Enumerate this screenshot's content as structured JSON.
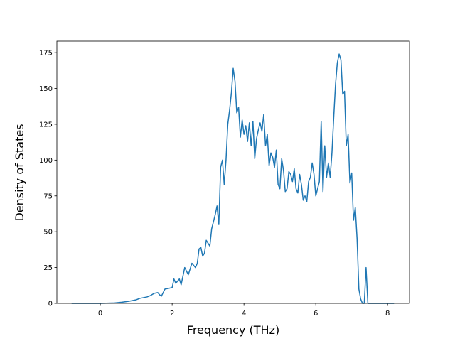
{
  "chart_data": {
    "type": "line",
    "xlabel": "Frequency (THz)",
    "ylabel": "Density of States",
    "x": [
      -0.8,
      -0.4,
      0,
      0.4,
      0.6,
      0.8,
      1.0,
      1.1,
      1.2,
      1.3,
      1.4,
      1.5,
      1.6,
      1.65,
      1.7,
      1.8,
      1.9,
      2.0,
      2.05,
      2.1,
      2.2,
      2.25,
      2.3,
      2.35,
      2.45,
      2.55,
      2.65,
      2.7,
      2.75,
      2.8,
      2.85,
      2.9,
      2.95,
      3.0,
      3.05,
      3.1,
      3.15,
      3.2,
      3.25,
      3.3,
      3.35,
      3.4,
      3.45,
      3.5,
      3.55,
      3.6,
      3.65,
      3.7,
      3.75,
      3.8,
      3.85,
      3.9,
      3.95,
      4.0,
      4.05,
      4.1,
      4.15,
      4.2,
      4.25,
      4.3,
      4.35,
      4.4,
      4.45,
      4.5,
      4.55,
      4.6,
      4.65,
      4.7,
      4.75,
      4.8,
      4.85,
      4.9,
      4.95,
      5.0,
      5.05,
      5.1,
      5.15,
      5.2,
      5.25,
      5.3,
      5.35,
      5.4,
      5.45,
      5.5,
      5.55,
      5.6,
      5.65,
      5.7,
      5.75,
      5.8,
      5.85,
      5.9,
      5.95,
      6.0,
      6.05,
      6.1,
      6.15,
      6.2,
      6.25,
      6.3,
      6.35,
      6.4,
      6.45,
      6.5,
      6.55,
      6.6,
      6.65,
      6.7,
      6.75,
      6.8,
      6.85,
      6.9,
      6.95,
      7.0,
      7.05,
      7.1,
      7.15,
      7.2,
      7.25,
      7.3,
      7.35,
      7.4,
      7.45,
      7.6,
      8.18
    ],
    "values": [
      0,
      0,
      0,
      0.3,
      0.8,
      1.5,
      2.5,
      3.5,
      4,
      4.5,
      5.5,
      7,
      7.5,
      6,
      5,
      10,
      10.5,
      11,
      17,
      14,
      17,
      13,
      19,
      25,
      20,
      28,
      25,
      28,
      38,
      39,
      33,
      35,
      44,
      42,
      40,
      52,
      57,
      62,
      68,
      55,
      95,
      100,
      83,
      100,
      125,
      135,
      147,
      164,
      155,
      133,
      137,
      116,
      128,
      118,
      124,
      113,
      126,
      110,
      127,
      101,
      115,
      121,
      126,
      120,
      132,
      110,
      118,
      96,
      105,
      102,
      95,
      107,
      83,
      80,
      101,
      93,
      78,
      80,
      92,
      90,
      85,
      94,
      80,
      77,
      90,
      83,
      72,
      75,
      71,
      85,
      88,
      98,
      90,
      75,
      80,
      85,
      127,
      78,
      110,
      88,
      98,
      88,
      105,
      130,
      153,
      168,
      174,
      170,
      146,
      148,
      110,
      118,
      84,
      91,
      58,
      67,
      45,
      10,
      3,
      0,
      0,
      25,
      0,
      0,
      0
    ],
    "color": "#1f77b4",
    "xlim": [
      -1.21,
      8.61
    ],
    "ylim": [
      0,
      183
    ],
    "xticks": [
      0,
      2,
      4,
      6,
      8
    ],
    "yticks": [
      0,
      25,
      50,
      75,
      100,
      125,
      150,
      175
    ]
  }
}
